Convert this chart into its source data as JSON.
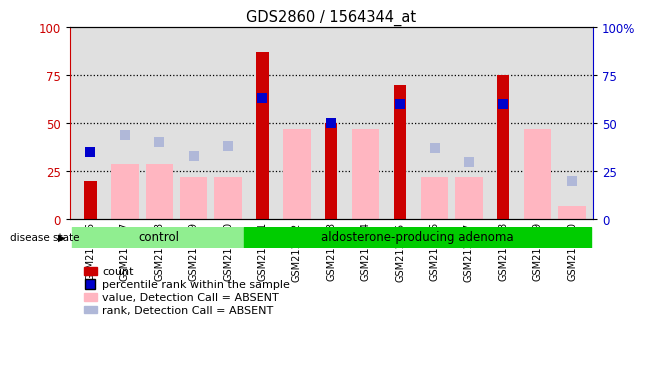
{
  "title": "GDS2860 / 1564344_at",
  "samples": [
    "GSM211446",
    "GSM211447",
    "GSM211448",
    "GSM211449",
    "GSM211450",
    "GSM211451",
    "GSM211452",
    "GSM211453",
    "GSM211454",
    "GSM211455",
    "GSM211456",
    "GSM211457",
    "GSM211458",
    "GSM211459",
    "GSM211460"
  ],
  "control_indices": [
    0,
    1,
    2,
    3,
    4
  ],
  "adenoma_indices": [
    5,
    6,
    7,
    8,
    9,
    10,
    11,
    12,
    13,
    14
  ],
  "count": [
    20,
    null,
    null,
    null,
    null,
    87,
    null,
    50,
    null,
    70,
    null,
    null,
    75,
    null,
    null
  ],
  "percentile_rank": [
    35,
    null,
    null,
    null,
    null,
    63,
    null,
    50,
    null,
    60,
    null,
    null,
    60,
    null,
    null
  ],
  "value_absent": [
    null,
    29,
    29,
    22,
    22,
    null,
    47,
    null,
    47,
    null,
    22,
    22,
    null,
    47,
    7
  ],
  "rank_absent": [
    null,
    44,
    40,
    33,
    38,
    null,
    null,
    null,
    null,
    null,
    37,
    30,
    null,
    null,
    20
  ],
  "ylim": [
    0,
    100
  ],
  "count_color": "#CC0000",
  "percentile_color": "#0000CC",
  "value_absent_color": "#FFB6C1",
  "rank_absent_color": "#B0B8D8",
  "background_color": "#FFFFFF",
  "plot_bg_color": "#E0E0E0",
  "control_bg": "#90EE90",
  "adenoma_bg": "#00CC00",
  "title_color": "#000000",
  "left_axis_color": "#CC0000",
  "right_axis_color": "#0000CC",
  "grid_color": "#000000",
  "bar_width": 0.5,
  "marker_size": 7
}
